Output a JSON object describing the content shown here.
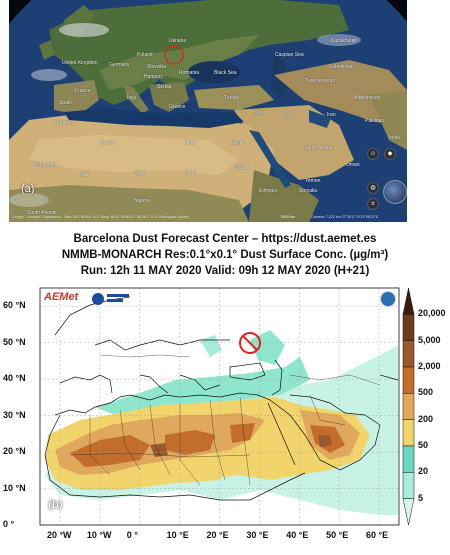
{
  "panel_a": {
    "tag": "(a)",
    "countries": [
      "Ukraine",
      "Kazakhstan",
      "United Kingdom",
      "Germany",
      "Poland",
      "Slovakia",
      "Romania",
      "Hungary",
      "Serbia",
      "France",
      "Spain",
      "Italy",
      "Greece",
      "Turkey",
      "Iraq",
      "Iran",
      "Syria",
      "Saudi Arabia",
      "Egypt",
      "Libya",
      "Algeria",
      "Mali",
      "Niger",
      "Chad",
      "Sudan",
      "Nigeria",
      "Ethiopia",
      "Somalia",
      "Mauritania",
      "Morocco",
      "Oman",
      "Yemen",
      "Turkmenistan",
      "Afghanistan",
      "Pakistan",
      "India",
      "Uzbekistan"
    ],
    "seas": [
      "Black Sea",
      "Caspian Sea",
      "South Atlantic"
    ],
    "attribution_left": "Google · Landsat / Copernicus · Data SIO, NOAA, U.S. Navy, NGA, GEBCO · IBCAO · U.S. Geological Survey",
    "attribution_right": "Camera: 7,223 km   37°26'17\"N 23°08'22\"E",
    "scale": "2000 km",
    "highlight_color": "#e02020"
  },
  "panel_b": {
    "title": {
      "line1": "Barcelona Dust Forecast Center – https://dust.aemet.es",
      "line2": "NMMB-MONARCH  Res:0.1°x0.1°  Dust Surface Conc. (µg/m³)",
      "line3": "Run: 12h 11 MAY 2020  Valid: 09h 12 MAY 2020 (H+21)"
    },
    "tag": "(b)",
    "logo_left": "AEMet",
    "lat_labels": [
      "60 °N",
      "50 °N",
      "40 °N",
      "30 °N",
      "20 °N",
      "10 °N",
      "0 °"
    ],
    "lat_values": [
      60,
      50,
      40,
      30,
      20,
      10,
      0
    ],
    "lon_labels": [
      "20 °W",
      "10 °W",
      "0 °",
      "10 °E",
      "20 °E",
      "30 °E",
      "40 °E",
      "50 °E",
      "60 °E"
    ],
    "lon_values": [
      -20,
      -10,
      0,
      10,
      20,
      30,
      40,
      50,
      60
    ],
    "lon_range": [
      -25,
      65
    ],
    "lat_range": [
      0,
      65
    ],
    "colorbar": {
      "labels": [
        "20,000",
        "5,000",
        "2,000",
        "500",
        "200",
        "50",
        "20",
        "5"
      ],
      "colors": [
        "#3a1c0c",
        "#6e3b1c",
        "#98592c",
        "#c26d2c",
        "#e0a85c",
        "#f2d46c",
        "#6ad8be",
        "#a8ecdc",
        "#d8f6ee"
      ]
    },
    "highlight_color": "#e02020"
  }
}
